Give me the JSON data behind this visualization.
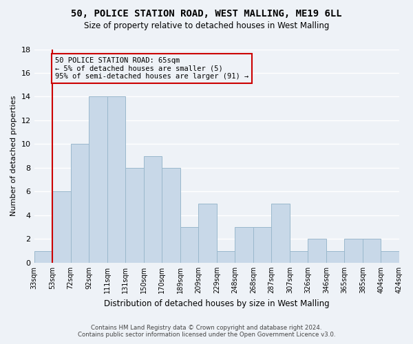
{
  "title": "50, POLICE STATION ROAD, WEST MALLING, ME19 6LL",
  "subtitle": "Size of property relative to detached houses in West Malling",
  "xlabel": "Distribution of detached houses by size in West Malling",
  "ylabel": "Number of detached properties",
  "bin_edges": [
    "33sqm",
    "53sqm",
    "72sqm",
    "92sqm",
    "111sqm",
    "131sqm",
    "150sqm",
    "170sqm",
    "189sqm",
    "209sqm",
    "229sqm",
    "248sqm",
    "268sqm",
    "287sqm",
    "307sqm",
    "326sqm",
    "346sqm",
    "365sqm",
    "385sqm",
    "404sqm",
    "424sqm"
  ],
  "values": [
    1,
    6,
    10,
    14,
    14,
    8,
    9,
    8,
    3,
    5,
    1,
    3,
    3,
    5,
    1,
    2,
    1,
    2,
    2,
    1
  ],
  "bar_color": "#c8d8e8",
  "bar_edge_color": "#9ab8cc",
  "ylim": [
    0,
    18
  ],
  "yticks": [
    0,
    2,
    4,
    6,
    8,
    10,
    12,
    14,
    16,
    18
  ],
  "subject_line_color": "#cc0000",
  "annotation_text": "50 POLICE STATION ROAD: 65sqm\n← 5% of detached houses are smaller (5)\n95% of semi-detached houses are larger (91) →",
  "annotation_box_color": "#cc0000",
  "footer_line1": "Contains HM Land Registry data © Crown copyright and database right 2024.",
  "footer_line2": "Contains public sector information licensed under the Open Government Licence v3.0.",
  "background_color": "#eef2f7",
  "grid_color": "#ffffff"
}
